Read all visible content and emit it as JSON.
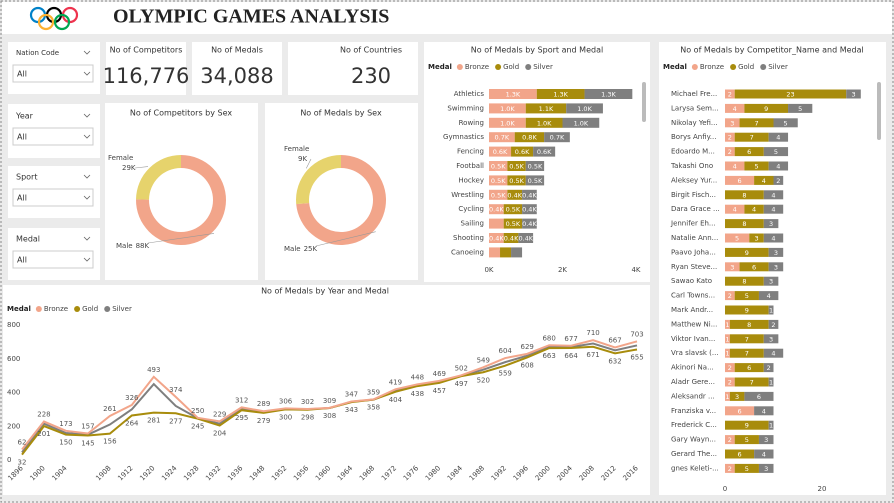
{
  "header": {
    "title": "OLYMPIC GAMES ANALYSIS"
  },
  "slicers": [
    {
      "label": "Nation Code",
      "value": "All"
    },
    {
      "label": "Year",
      "value": "All"
    },
    {
      "label": "Sport",
      "value": "All"
    },
    {
      "label": "Medal",
      "value": "All"
    }
  ],
  "cards": [
    {
      "title": "No of Competitors",
      "value": "116,776"
    },
    {
      "title": "No of Medals",
      "value": "34,088"
    },
    {
      "title": "No of Countries",
      "value": "230"
    }
  ],
  "chart_data": [
    {
      "type": "donut",
      "title": "No of Competitors by Sex",
      "categories": [
        "Male",
        "Female"
      ],
      "values": [
        88000,
        29000
      ],
      "value_labels": [
        "88K",
        "29K"
      ],
      "colors": [
        "#f2a58a",
        "#e6d36c"
      ]
    },
    {
      "type": "donut",
      "title": "No of Medals by Sex",
      "categories": [
        "Male",
        "Female"
      ],
      "values": [
        25000,
        9000
      ],
      "value_labels": [
        "25K",
        "9K"
      ],
      "colors": [
        "#f2a58a",
        "#e6d36c"
      ]
    },
    {
      "type": "bar",
      "orientation": "horizontal",
      "stacked": true,
      "title": "No of Medals by Sport and Medal",
      "legend_title": "Medal",
      "categories": [
        "Athletics",
        "Swimming",
        "Rowing",
        "Gymnastics",
        "Fencing",
        "Football",
        "Hockey",
        "Wrestling",
        "Cycling",
        "Sailing",
        "Shooting",
        "Canoeing"
      ],
      "series": [
        {
          "name": "Bronze",
          "color": "#f2a58a",
          "values": [
            1300,
            1000,
            1000,
            700,
            600,
            500,
            500,
            500,
            400,
            400,
            400,
            300
          ],
          "value_labels": [
            "1.3K",
            "1.0K",
            "1.0K",
            "0.7K",
            "0.6K",
            "0.5K",
            "0.5K",
            "0.5K",
            "0.4K",
            null,
            "0.4K",
            null
          ]
        },
        {
          "name": "Gold",
          "color": "#a88c0c",
          "values": [
            1300,
            1100,
            1000,
            800,
            600,
            500,
            500,
            400,
            500,
            500,
            400,
            300
          ],
          "value_labels": [
            "1.3K",
            "1.1K",
            "1.0K",
            "0.8K",
            "0.6K",
            "0.5K",
            "0.5K",
            "0.4K",
            "0.5K",
            "0.5K",
            "0.4K",
            null
          ]
        },
        {
          "name": "Silver",
          "color": "#7f7f7f",
          "values": [
            1300,
            1000,
            1000,
            700,
            600,
            500,
            500,
            400,
            400,
            400,
            400,
            300
          ],
          "value_labels": [
            "1.3K",
            "1.0K",
            "1.0K",
            "0.7K",
            "0.6K",
            "0.5K",
            "0.5K",
            "0.4K",
            "0.4K",
            "0.4K",
            "0.4K",
            null
          ]
        }
      ],
      "xlim": [
        0,
        4000
      ],
      "xticks": [
        {
          "value": 0,
          "label": "0K"
        },
        {
          "value": 2000,
          "label": "2K"
        },
        {
          "value": 4000,
          "label": "4K"
        }
      ]
    },
    {
      "type": "bar",
      "orientation": "horizontal",
      "stacked": true,
      "title": "No of Medals by Competitor_Name and Medal",
      "legend_title": "Medal",
      "categories": [
        "Michael Fre...",
        "Larysa Sem...",
        "Nikolay Yefi...",
        "Borys Anfiy...",
        "Edoardo M...",
        "Takashi Ono",
        "Aleksey Yur...",
        "Birgit Fisch...",
        "Dara Grace ...",
        "Jennifer Eh...",
        "Natalie Ann...",
        "Paavo Joha...",
        "Ryan Steve...",
        "Sawao Kato",
        "Carl Towns...",
        "Mark Andr...",
        "Matthew Ni...",
        "Viktor Ivan...",
        "Vra slavsk (...",
        "Akinori Na...",
        "Aladr Gere...",
        "Aleksandr ...",
        "Franziska v...",
        "Frederick C...",
        "Gary Wayn...",
        "Gerard The...",
        "gnes Keleti-..."
      ],
      "series": [
        {
          "name": "Bronze",
          "color": "#f2a58a",
          "values": [
            2,
            4,
            3,
            2,
            2,
            4,
            6,
            null,
            4,
            null,
            5,
            null,
            3,
            null,
            2,
            null,
            1,
            1,
            1,
            2,
            2,
            1,
            6,
            null,
            2,
            null,
            2
          ]
        },
        {
          "name": "Gold",
          "color": "#a88c0c",
          "values": [
            23,
            9,
            7,
            7,
            6,
            5,
            4,
            8,
            4,
            8,
            3,
            9,
            6,
            8,
            5,
            9,
            8,
            7,
            7,
            6,
            7,
            3,
            null,
            9,
            5,
            6,
            5
          ]
        },
        {
          "name": "Silver",
          "color": "#7f7f7f",
          "values": [
            3,
            5,
            5,
            4,
            5,
            4,
            2,
            4,
            4,
            3,
            4,
            3,
            3,
            3,
            4,
            1,
            2,
            3,
            4,
            2,
            1,
            6,
            4,
            1,
            3,
            4,
            3
          ]
        }
      ],
      "xlim": [
        0,
        30
      ],
      "xticks": [
        0,
        20
      ]
    },
    {
      "type": "line",
      "title": "No of Medals by Year and Medal",
      "legend_title": "Medal",
      "categories": [
        "1896",
        "1900",
        "1904",
        null,
        "1908",
        "1912",
        "1920",
        "1924",
        "1928",
        "1932",
        "1936",
        "1948",
        "1952",
        "1956",
        "1960",
        "1964",
        "1968",
        "1972",
        "1976",
        "1980",
        "1984",
        "1988",
        "1992",
        "1996",
        "2000",
        "2004",
        "2008",
        "2012",
        "2016"
      ],
      "series": [
        {
          "name": "Bronze",
          "color": "#f2a58a",
          "data_labels": true,
          "values": [
            62,
            228,
            173,
            157,
            261,
            326,
            493,
            374,
            250,
            229,
            312,
            289,
            306,
            302,
            309,
            347,
            359,
            419,
            448,
            469,
            502,
            549,
            604,
            629,
            680,
            677,
            710,
            667,
            703
          ]
        },
        {
          "name": "Gold",
          "color": "#a88c0c",
          "data_labels": true,
          "values": [
            32,
            201,
            150,
            145,
            156,
            264,
            281,
            277,
            245,
            204,
            295,
            279,
            300,
            298,
            308,
            343,
            358,
            404,
            438,
            457,
            497,
            520,
            559,
            608,
            663,
            664,
            671,
            632,
            655
          ]
        },
        {
          "name": "Silver",
          "color": "#7f7f7f",
          "data_labels": false,
          "values": [
            45,
            215,
            160,
            150,
            210,
            300,
            450,
            320,
            248,
            215,
            303,
            284,
            303,
            300,
            308,
            345,
            358,
            410,
            443,
            463,
            499,
            535,
            580,
            618,
            670,
            670,
            690,
            650,
            679
          ]
        }
      ],
      "ylim": [
        0,
        800
      ],
      "yticks": [
        0,
        200,
        400,
        600,
        800
      ]
    }
  ]
}
